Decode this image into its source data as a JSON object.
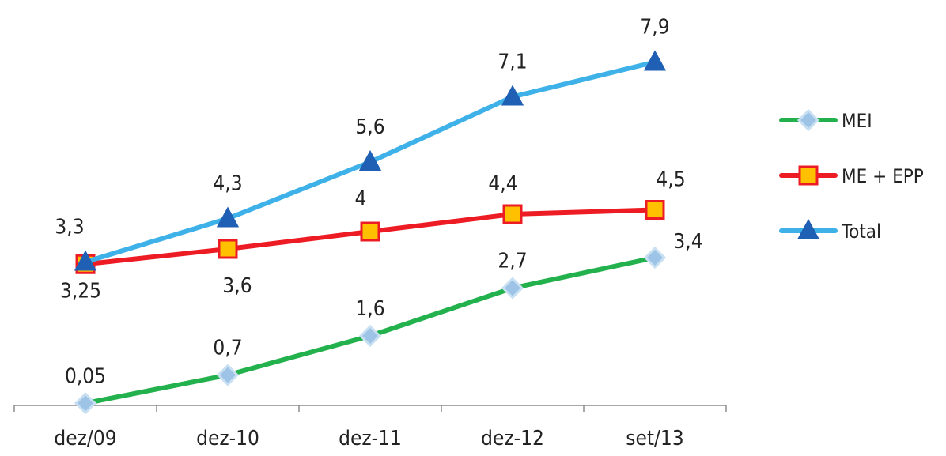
{
  "chart_data": {
    "type": "line",
    "title": "",
    "xlabel": "",
    "ylabel": "",
    "categories": [
      "dez/09",
      "dez-10",
      "dez-11",
      "dez-12",
      "set/13"
    ],
    "ylim": [
      0,
      8.5
    ],
    "grid": false,
    "legend_position": "right",
    "series": [
      {
        "name": "MEI",
        "color": "#22b14c",
        "marker": "diamond",
        "marker_color": "#9dc3e6",
        "values": [
          0.05,
          0.7,
          1.6,
          2.7,
          3.4
        ],
        "labels": [
          "0,05",
          "0,7",
          "1,6",
          "2,7",
          "3,4"
        ]
      },
      {
        "name": "ME + EPP",
        "color": "#ed1c24",
        "marker": "square",
        "marker_color": "#ffc000",
        "values": [
          3.25,
          3.6,
          4.0,
          4.4,
          4.5
        ],
        "labels": [
          "3,25",
          "3,6",
          "4",
          "4,4",
          "4,5"
        ]
      },
      {
        "name": "Total",
        "color": "#3eb1e8",
        "marker": "triangle",
        "marker_color": "#1f5fb4",
        "values": [
          3.3,
          4.3,
          5.6,
          7.1,
          7.9
        ],
        "labels": [
          "3,3",
          "4,3",
          "5,6",
          "7,1",
          "7,9"
        ]
      }
    ]
  }
}
